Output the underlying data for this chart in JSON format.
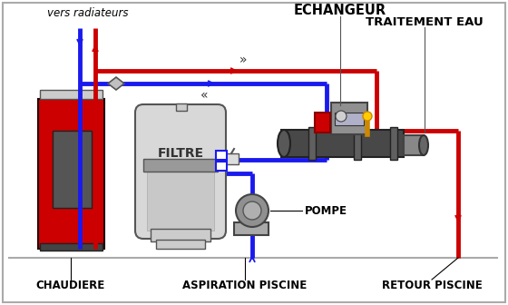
{
  "bg_color": "#ffffff",
  "red": "#cc0000",
  "blue": "#1a1aee",
  "pipe_lw": 3.5,
  "labels": {
    "vers_radiateurs": "vers radiateurs",
    "echangeur": "ECHANGEUR",
    "traitement_eau": "TRAITEMENT EAU",
    "filtre": "FILTRE",
    "pompe": "POMPE",
    "chaudiere": "CHAUDIERE",
    "aspiration": "ASPIRATION PISCINE",
    "retour": "RETOUR PISCINE"
  },
  "pipe_red": "#cc0000",
  "pipe_blue": "#1a1aee",
  "boiler_red": "#cc0000",
  "boiler_gray_top": "#cccccc",
  "boiler_gray_bot": "#555555",
  "boiler_panel": "#555555",
  "filter_body": "#d0d0d0",
  "filter_band": "#999999",
  "exchanger_body": "#505050",
  "arrow_color_blue": "#1a1aee",
  "arrow_color_red": "#cc0000"
}
